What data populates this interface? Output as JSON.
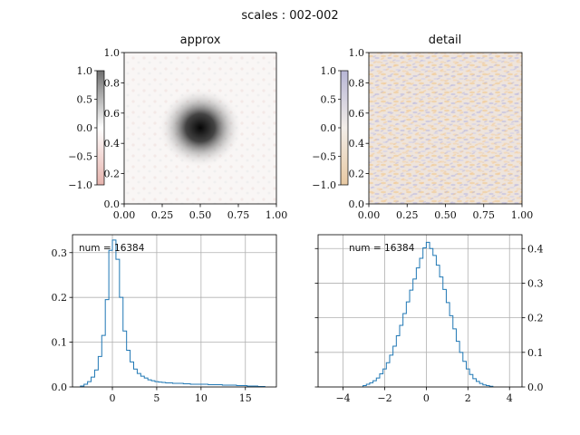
{
  "figure": {
    "suptitle": "scales : 002-002"
  },
  "chart_data": [
    {
      "type": "heatmap",
      "id": "approx",
      "title": "approx",
      "xlim": [
        0.0,
        1.0
      ],
      "ylim": [
        0.0,
        1.0
      ],
      "xticks": [
        "0.00",
        "0.25",
        "0.50",
        "0.75",
        "1.00"
      ],
      "yticks": [
        "0.0",
        "0.2",
        "0.4",
        "0.6",
        "0.8",
        "1.0"
      ],
      "colorbar": {
        "range": [
          -1.0,
          1.0
        ],
        "ticks": [
          "−1.0",
          "−0.5",
          "0.0",
          "0.5",
          "1.0"
        ],
        "colors": [
          "#e6b3ad",
          "#ffffff",
          "#707070"
        ]
      },
      "feature": {
        "center": [
          0.5,
          0.5
        ],
        "shape": "dark gaussian blob on near-white background"
      }
    },
    {
      "type": "heatmap",
      "id": "detail",
      "title": "detail",
      "xlim": [
        0.0,
        1.0
      ],
      "ylim": [
        0.0,
        1.0
      ],
      "xticks": [
        "0.00",
        "0.25",
        "0.50",
        "0.75",
        "1.00"
      ],
      "yticks": [
        "0.0",
        "0.2",
        "0.4",
        "0.6",
        "0.8",
        "1.0"
      ],
      "colorbar": {
        "range": [
          -1.0,
          1.0
        ],
        "ticks": [
          "−1.0",
          "−0.5",
          "0.0",
          "0.5",
          "1.0"
        ],
        "colors": [
          "#e8c9a2",
          "#f3eee9",
          "#b7b6d6"
        ]
      },
      "feature": {
        "shape": "fine orange/lavender noise texture"
      }
    },
    {
      "type": "histogram",
      "id": "approx-hist",
      "annotation": "num = 16384",
      "xlim": [
        -4.5,
        18.5
      ],
      "ylim": [
        0.0,
        0.34
      ],
      "xticks": [
        0,
        5,
        10,
        15
      ],
      "yticks": [
        0.0,
        0.1,
        0.2,
        0.3
      ],
      "yaxis_side": "left",
      "grid": true,
      "color": "#1f77b4",
      "bin_width": 0.4,
      "x": [
        -3.4,
        -3.0,
        -2.6,
        -2.2,
        -1.8,
        -1.4,
        -1.0,
        -0.6,
        -0.2,
        0.2,
        0.6,
        1.0,
        1.4,
        1.8,
        2.2,
        2.6,
        3.0,
        3.4,
        3.8,
        4.2,
        4.6,
        5.0,
        5.4,
        5.8,
        6.2,
        6.6,
        7.0,
        7.4,
        7.8,
        8.2,
        8.6,
        9.0,
        9.4,
        9.8,
        10.2,
        10.6,
        11.0,
        11.4,
        11.8,
        12.2,
        12.6,
        13.0,
        13.4,
        13.8,
        14.2,
        14.6,
        15.0,
        15.4,
        15.8,
        16.2,
        16.6,
        17.0
      ],
      "values": [
        0.002,
        0.006,
        0.012,
        0.022,
        0.038,
        0.068,
        0.115,
        0.195,
        0.305,
        0.328,
        0.285,
        0.2,
        0.125,
        0.082,
        0.056,
        0.04,
        0.03,
        0.024,
        0.02,
        0.016,
        0.014,
        0.012,
        0.011,
        0.01,
        0.009,
        0.009,
        0.008,
        0.008,
        0.008,
        0.007,
        0.007,
        0.006,
        0.006,
        0.006,
        0.006,
        0.006,
        0.005,
        0.005,
        0.005,
        0.005,
        0.004,
        0.004,
        0.004,
        0.004,
        0.003,
        0.003,
        0.003,
        0.002,
        0.002,
        0.002,
        0.001,
        0.001
      ]
    },
    {
      "type": "histogram",
      "id": "detail-hist",
      "annotation": "num = 16384",
      "xlim": [
        -5.2,
        4.6
      ],
      "ylim": [
        0.0,
        0.44
      ],
      "xticks": [
        -4,
        -2,
        0,
        2,
        4
      ],
      "yticks": [
        0.0,
        0.1,
        0.2,
        0.3,
        0.4
      ],
      "yaxis_side": "right",
      "grid": true,
      "color": "#1f77b4",
      "bin_width": 0.16,
      "x": [
        -2.96,
        -2.8,
        -2.64,
        -2.48,
        -2.32,
        -2.16,
        -2.0,
        -1.84,
        -1.68,
        -1.52,
        -1.36,
        -1.2,
        -1.04,
        -0.88,
        -0.72,
        -0.56,
        -0.4,
        -0.24,
        -0.08,
        0.08,
        0.24,
        0.4,
        0.56,
        0.72,
        0.88,
        1.04,
        1.2,
        1.36,
        1.52,
        1.68,
        1.84,
        2.0,
        2.16,
        2.32,
        2.48,
        2.64,
        2.8,
        2.96,
        3.12
      ],
      "values": [
        0.004,
        0.008,
        0.012,
        0.018,
        0.026,
        0.038,
        0.052,
        0.07,
        0.092,
        0.118,
        0.148,
        0.178,
        0.212,
        0.246,
        0.28,
        0.312,
        0.344,
        0.372,
        0.402,
        0.418,
        0.4,
        0.38,
        0.352,
        0.318,
        0.282,
        0.244,
        0.206,
        0.168,
        0.132,
        0.1,
        0.074,
        0.052,
        0.036,
        0.024,
        0.016,
        0.01,
        0.006,
        0.004,
        0.002
      ]
    }
  ]
}
